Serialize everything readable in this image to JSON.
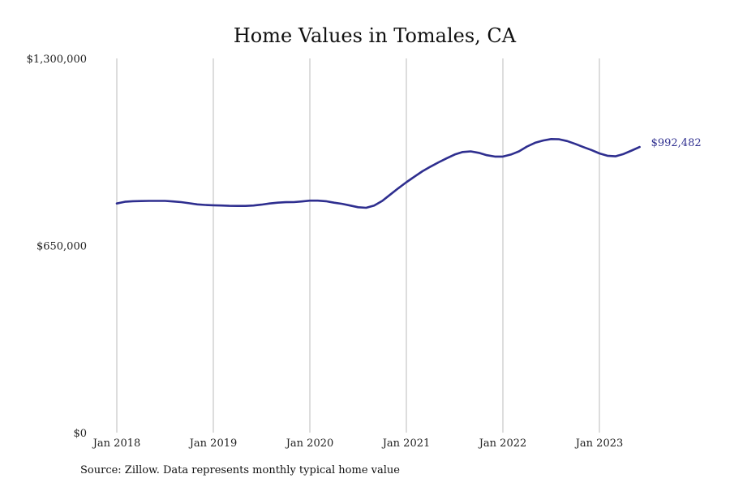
{
  "chart_data": {
    "type": "line",
    "title": "Home Values in Tomales, CA",
    "xlabel": "",
    "ylabel": "",
    "x_ticks": [
      "Jan 2018",
      "Jan 2019",
      "Jan 2020",
      "Jan 2021",
      "Jan 2022",
      "Jan 2023"
    ],
    "y_ticks": [
      {
        "value": 1300000,
        "label": "$1,300,000"
      },
      {
        "value": 650000,
        "label": "$650,000"
      },
      {
        "value": 0,
        "label": "$0"
      }
    ],
    "ylim": [
      0,
      1300000
    ],
    "grid": "vertical",
    "line_color": "#2e2e8f",
    "grid_color": "#bbbbbb",
    "end_label": "$992,482",
    "series": [
      {
        "points": [
          [
            "2018-01",
            796000
          ],
          [
            "2018-02",
            802000
          ],
          [
            "2018-03",
            804000
          ],
          [
            "2018-04",
            804500
          ],
          [
            "2018-05",
            805000
          ],
          [
            "2018-06",
            805000
          ],
          [
            "2018-07",
            805000
          ],
          [
            "2018-08",
            803000
          ],
          [
            "2018-09",
            801000
          ],
          [
            "2018-10",
            797000
          ],
          [
            "2018-11",
            793000
          ],
          [
            "2018-12",
            791000
          ],
          [
            "2019-01",
            790000
          ],
          [
            "2019-02",
            789000
          ],
          [
            "2019-03",
            788000
          ],
          [
            "2019-04",
            787500
          ],
          [
            "2019-05",
            787500
          ],
          [
            "2019-06",
            789000
          ],
          [
            "2019-07",
            792000
          ],
          [
            "2019-08",
            796000
          ],
          [
            "2019-09",
            799000
          ],
          [
            "2019-10",
            800500
          ],
          [
            "2019-11",
            801000
          ],
          [
            "2019-12",
            803000
          ],
          [
            "2020-01",
            806000
          ],
          [
            "2020-02",
            806000
          ],
          [
            "2020-03",
            804000
          ],
          [
            "2020-04",
            799000
          ],
          [
            "2020-05",
            795000
          ],
          [
            "2020-06",
            789000
          ],
          [
            "2020-07",
            783000
          ],
          [
            "2020-08",
            781000
          ],
          [
            "2020-09",
            789000
          ],
          [
            "2020-10",
            805000
          ],
          [
            "2020-11",
            827000
          ],
          [
            "2020-12",
            849000
          ],
          [
            "2021-01",
            870000
          ],
          [
            "2021-02",
            889000
          ],
          [
            "2021-03",
            908000
          ],
          [
            "2021-04",
            924000
          ],
          [
            "2021-05",
            939000
          ],
          [
            "2021-06",
            953000
          ],
          [
            "2021-07",
            966000
          ],
          [
            "2021-08",
            975000
          ],
          [
            "2021-09",
            977000
          ],
          [
            "2021-10",
            972000
          ],
          [
            "2021-11",
            964000
          ],
          [
            "2021-12",
            959000
          ],
          [
            "2022-01",
            959000
          ],
          [
            "2022-02",
            966000
          ],
          [
            "2022-03",
            977000
          ],
          [
            "2022-04",
            994000
          ],
          [
            "2022-05",
            1007000
          ],
          [
            "2022-06",
            1015000
          ],
          [
            "2022-07",
            1020000
          ],
          [
            "2022-08",
            1019000
          ],
          [
            "2022-09",
            1013000
          ],
          [
            "2022-10",
            1003000
          ],
          [
            "2022-11",
            992000
          ],
          [
            "2022-12",
            982000
          ],
          [
            "2023-01",
            970000
          ],
          [
            "2023-02",
            962000
          ],
          [
            "2023-03",
            960000
          ],
          [
            "2023-04",
            968000
          ],
          [
            "2023-05",
            980000
          ],
          [
            "2023-06",
            992482
          ]
        ]
      }
    ]
  },
  "source_text": "Source: Zillow. Data represents monthly typical home value"
}
